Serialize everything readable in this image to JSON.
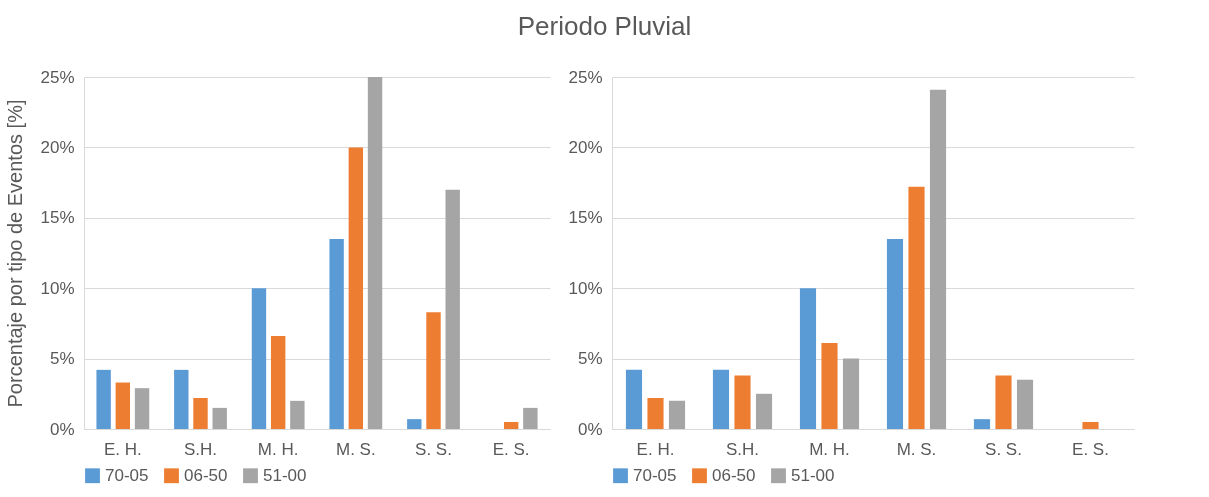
{
  "chart_data": [
    {
      "type": "bar",
      "title": "Periodo Pluvial",
      "ylabel": "Porcentaje por tipo de Eventos [%]",
      "categories": [
        "E. H.",
        "S.H.",
        "M. H.",
        "M. S.",
        "S. S.",
        "E. S."
      ],
      "series": [
        {
          "name": "70-05",
          "color": "#5b9bd5",
          "values": [
            4.2,
            4.2,
            10,
            13.5,
            0.7,
            0
          ]
        },
        {
          "name": "06-50",
          "color": "#ed7d31",
          "values": [
            3.3,
            2.2,
            6.6,
            20,
            8.3,
            0.5
          ]
        },
        {
          "name": "51-00",
          "color": "#a5a5a5",
          "values": [
            2.9,
            1.5,
            2.0,
            25,
            17.0,
            1.5
          ]
        }
      ],
      "ylim": [
        0,
        25
      ],
      "yticks": [
        {
          "value": 0,
          "label": "0%"
        },
        {
          "value": 5,
          "label": "5%"
        },
        {
          "value": 10,
          "label": "10%"
        },
        {
          "value": 15,
          "label": "15%"
        },
        {
          "value": 20,
          "label": "20%"
        },
        {
          "value": 25,
          "label": "25%"
        }
      ],
      "grid": "y",
      "legend": "bottom"
    },
    {
      "type": "bar",
      "categories": [
        "E. H.",
        "S.H.",
        "M. H.",
        "M. S.",
        "S. S.",
        "E. S."
      ],
      "series": [
        {
          "name": "70-05",
          "color": "#5b9bd5",
          "values": [
            4.2,
            4.2,
            10,
            13.5,
            0.7,
            0
          ]
        },
        {
          "name": "06-50",
          "color": "#ed7d31",
          "values": [
            2.2,
            3.8,
            6.1,
            17.2,
            3.8,
            0.5
          ]
        },
        {
          "name": "51-00",
          "color": "#a5a5a5",
          "values": [
            2.0,
            2.5,
            5.0,
            24.1,
            3.5,
            0
          ]
        }
      ],
      "ylim": [
        0,
        25
      ],
      "yticks": [
        {
          "value": 0,
          "label": "0%"
        },
        {
          "value": 5,
          "label": "5%"
        },
        {
          "value": 10,
          "label": "10%"
        },
        {
          "value": 15,
          "label": "15%"
        },
        {
          "value": 20,
          "label": "20%"
        },
        {
          "value": 25,
          "label": "25%"
        }
      ],
      "grid": "y",
      "legend": "bottom"
    }
  ]
}
